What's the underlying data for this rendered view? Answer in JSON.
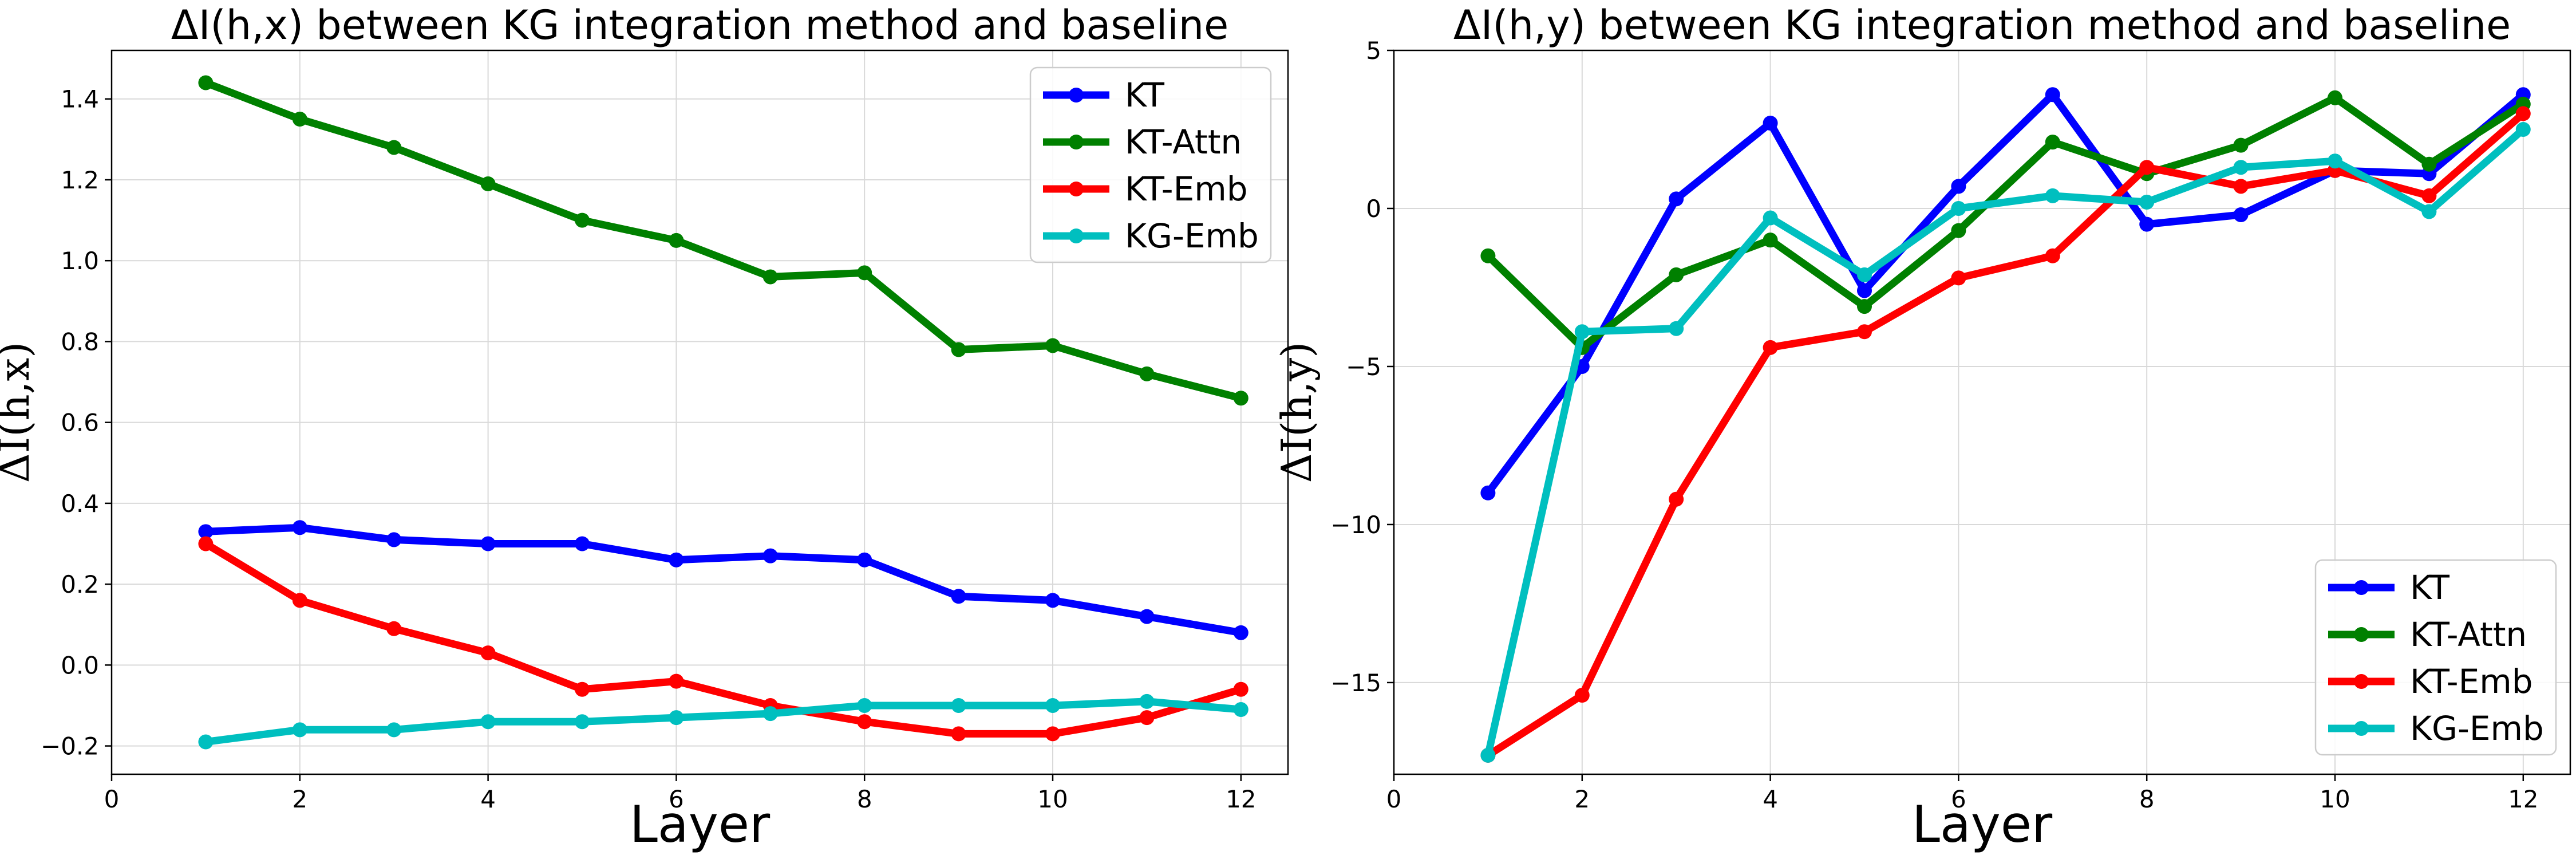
{
  "colors": {
    "KT": "#0000ff",
    "KT-Attn": "#008000",
    "KT-Emb": "#ff0000",
    "KG-Emb": "#00bfbf"
  },
  "chart_data": [
    {
      "type": "line",
      "title": "ΔI(h,x) between KG integration method and baseline",
      "xlabel": "Layer",
      "ylabel": "ΔI(h,x)",
      "xlim": [
        0,
        12.5
      ],
      "ylim": [
        -0.27,
        1.52
      ],
      "xticks": [
        0,
        2,
        4,
        6,
        8,
        10,
        12
      ],
      "xtick_labels": [
        "0",
        "2",
        "4",
        "6",
        "8",
        "10",
        "12"
      ],
      "yticks": [
        -0.2,
        0.0,
        0.2,
        0.4,
        0.6,
        0.8,
        1.0,
        1.2,
        1.4
      ],
      "ytick_labels": [
        "−0.2",
        "0.0",
        "0.2",
        "0.4",
        "0.6",
        "0.8",
        "1.0",
        "1.2",
        "1.4"
      ],
      "grid": true,
      "legend_position": "top-right",
      "x": [
        1,
        2,
        3,
        4,
        5,
        6,
        7,
        8,
        9,
        10,
        11,
        12
      ],
      "series": [
        {
          "name": "KT",
          "values": [
            0.33,
            0.34,
            0.31,
            0.3,
            0.3,
            0.26,
            0.27,
            0.26,
            0.17,
            0.16,
            0.12,
            0.08
          ]
        },
        {
          "name": "KT-Attn",
          "values": [
            1.44,
            1.35,
            1.28,
            1.19,
            1.1,
            1.05,
            0.96,
            0.97,
            0.78,
            0.79,
            0.72,
            0.66
          ]
        },
        {
          "name": "KT-Emb",
          "values": [
            0.3,
            0.16,
            0.09,
            0.03,
            -0.06,
            -0.04,
            -0.1,
            -0.14,
            -0.17,
            -0.17,
            -0.13,
            -0.06
          ]
        },
        {
          "name": "KG-Emb",
          "values": [
            -0.19,
            -0.16,
            -0.16,
            -0.14,
            -0.14,
            -0.13,
            -0.12,
            -0.1,
            -0.1,
            -0.1,
            -0.09,
            -0.11
          ]
        }
      ]
    },
    {
      "type": "line",
      "title": "ΔI(h,y) between KG integration method and baseline",
      "xlabel": "Layer",
      "ylabel": "ΔI(h,y)",
      "xlim": [
        0,
        12.5
      ],
      "ylim": [
        -17.9,
        5
      ],
      "xticks": [
        0,
        2,
        4,
        6,
        8,
        10,
        12
      ],
      "xtick_labels": [
        "0",
        "2",
        "4",
        "6",
        "8",
        "10",
        "12"
      ],
      "yticks": [
        -15,
        -10,
        -5,
        0,
        5
      ],
      "ytick_labels": [
        "−15",
        "−10",
        "−5",
        "0",
        "5"
      ],
      "grid": true,
      "legend_position": "bottom-right",
      "x": [
        1,
        2,
        3,
        4,
        5,
        6,
        7,
        8,
        9,
        10,
        11,
        12
      ],
      "series": [
        {
          "name": "KT",
          "values": [
            -9.0,
            -5.0,
            0.3,
            2.7,
            -2.6,
            0.7,
            3.6,
            -0.5,
            -0.2,
            1.2,
            1.1,
            3.6
          ]
        },
        {
          "name": "KT-Attn",
          "values": [
            -1.5,
            -4.4,
            -2.1,
            -1.0,
            -3.1,
            -0.7,
            2.1,
            1.1,
            2.0,
            3.5,
            1.4,
            3.3
          ]
        },
        {
          "name": "KT-Emb",
          "values": [
            -17.3,
            -15.4,
            -9.2,
            -4.4,
            -3.9,
            -2.2,
            -1.5,
            1.3,
            0.7,
            1.2,
            0.4,
            3.0
          ]
        },
        {
          "name": "KG-Emb",
          "values": [
            -17.3,
            -3.9,
            -3.8,
            -0.3,
            -2.1,
            0.0,
            0.4,
            0.2,
            1.3,
            1.5,
            -0.1,
            2.5
          ]
        }
      ]
    }
  ]
}
